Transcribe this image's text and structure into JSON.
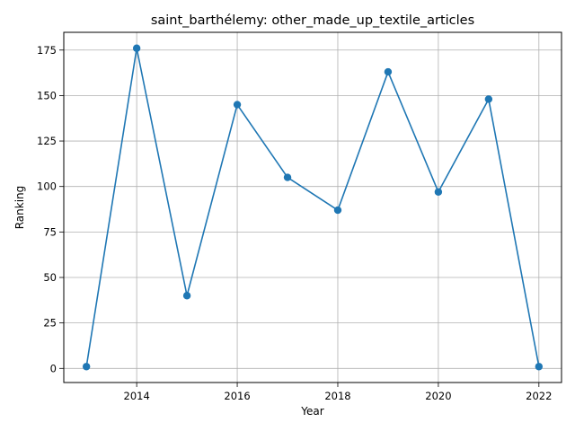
{
  "chart_data": {
    "type": "line",
    "title": "saint_barthélemy: other_made_up_textile_articles",
    "xlabel": "Year",
    "ylabel": "Ranking",
    "x": [
      2013,
      2014,
      2015,
      2016,
      2017,
      2018,
      2019,
      2020,
      2021,
      2022
    ],
    "series": [
      {
        "values": [
          1,
          176,
          40,
          145,
          105,
          87,
          163,
          97,
          148,
          1
        ],
        "color": "#1f77b4",
        "marker": "circle"
      }
    ],
    "xlim": [
      2012.55,
      2022.45
    ],
    "ylim": [
      -7.75,
      184.75
    ],
    "xticks": [
      2014,
      2016,
      2018,
      2020,
      2022
    ],
    "yticks": [
      0,
      25,
      50,
      75,
      100,
      125,
      150,
      175
    ],
    "grid": true,
    "legend": "none"
  }
}
